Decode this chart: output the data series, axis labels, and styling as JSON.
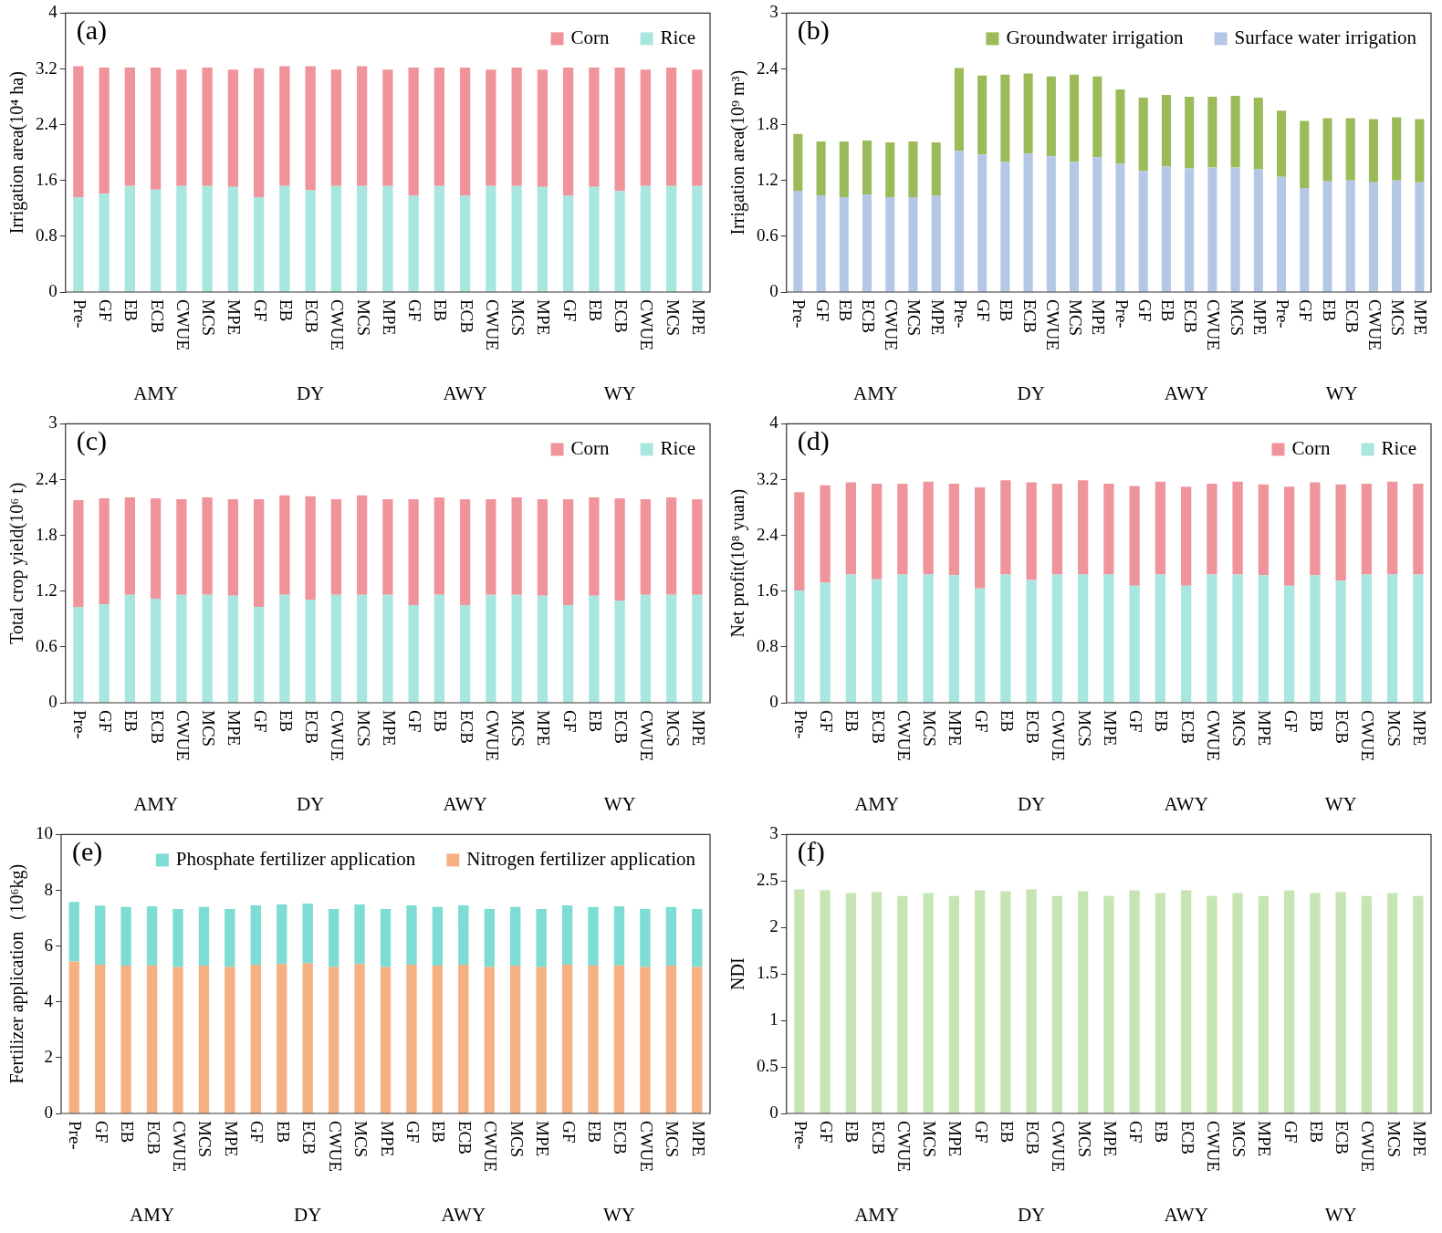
{
  "chart_data": [
    {
      "type": "bar",
      "title": "(a)",
      "ylabel": "Irrigation area(10⁴ ha)",
      "stacked": true,
      "legend": "top right",
      "ylim": [
        0,
        4
      ],
      "yticks": [
        0,
        0.8,
        1.6,
        2.4,
        3.2,
        4
      ],
      "annotations": [
        "AMY",
        "DY",
        "AWY",
        "WY"
      ],
      "categories": [
        "Pre-",
        "GF",
        "EB",
        "ECB",
        "CWUE",
        "MCS",
        "MPE",
        "GF",
        "EB",
        "ECB",
        "CWUE",
        "MCS",
        "MPE",
        "GF",
        "EB",
        "ECB",
        "CWUE",
        "MCS",
        "MPE",
        "GF",
        "EB",
        "ECB",
        "CWUE",
        "MCS",
        "MPE"
      ],
      "series": [
        {
          "name": "Rice",
          "color": "#a8e6e0",
          "values": [
            1.36,
            1.41,
            1.52,
            1.47,
            1.52,
            1.52,
            1.51,
            1.36,
            1.52,
            1.46,
            1.52,
            1.52,
            1.52,
            1.38,
            1.52,
            1.38,
            1.52,
            1.52,
            1.51,
            1.38,
            1.51,
            1.45,
            1.52,
            1.52,
            1.52
          ]
        },
        {
          "name": "Corn",
          "color": "#f0949c",
          "values": [
            1.88,
            1.81,
            1.7,
            1.75,
            1.67,
            1.7,
            1.68,
            1.85,
            1.72,
            1.78,
            1.67,
            1.72,
            1.67,
            1.84,
            1.7,
            1.84,
            1.67,
            1.7,
            1.68,
            1.84,
            1.71,
            1.77,
            1.67,
            1.7,
            1.67
          ]
        }
      ]
    },
    {
      "type": "bar",
      "title": "(b)",
      "ylabel": "Irrigation area(10⁹ m³)",
      "stacked": true,
      "legend": "top right",
      "ylim": [
        0,
        3
      ],
      "yticks": [
        0,
        0.6,
        1.2,
        1.8,
        2.4,
        3
      ],
      "annotations": [
        "AMY",
        "DY",
        "AWY",
        "WY"
      ],
      "categories": [
        "Pre-",
        "GF",
        "EB",
        "ECB",
        "CWUE",
        "MCS",
        "MPE",
        "Pre-",
        "GF",
        "EB",
        "ECB",
        "CWUE",
        "MCS",
        "MPE",
        "Pre-",
        "GF",
        "EB",
        "ECB",
        "CWUE",
        "MCS",
        "MPE",
        "Pre-",
        "GF",
        "EB",
        "ECB",
        "CWUE",
        "MCS",
        "MPE"
      ],
      "series": [
        {
          "name": "Surface water irrigation",
          "color": "#b4c7e7",
          "values": [
            1.09,
            1.04,
            1.02,
            1.05,
            1.02,
            1.02,
            1.04,
            1.52,
            1.48,
            1.4,
            1.49,
            1.46,
            1.4,
            1.45,
            1.38,
            1.3,
            1.35,
            1.33,
            1.34,
            1.34,
            1.32,
            1.24,
            1.12,
            1.19,
            1.2,
            1.18,
            1.2,
            1.18
          ]
        },
        {
          "name": "Groundwater irrigation",
          "color": "#9bbb59",
          "values": [
            0.61,
            0.58,
            0.6,
            0.58,
            0.59,
            0.6,
            0.57,
            0.89,
            0.85,
            0.94,
            0.86,
            0.86,
            0.94,
            0.87,
            0.8,
            0.79,
            0.77,
            0.77,
            0.76,
            0.77,
            0.77,
            0.71,
            0.72,
            0.68,
            0.67,
            0.68,
            0.68,
            0.68
          ]
        }
      ]
    },
    {
      "type": "bar",
      "title": "(c)",
      "ylabel": "Total crop yield(10⁶ t)",
      "stacked": true,
      "legend": "top right",
      "ylim": [
        0,
        3
      ],
      "yticks": [
        0,
        0.6,
        1.2,
        1.8,
        2.4,
        3
      ],
      "annotations": [
        "AMY",
        "DY",
        "AWY",
        "WY"
      ],
      "categories": [
        "Pre-",
        "GF",
        "EB",
        "ECB",
        "CWUE",
        "MCS",
        "MPE",
        "GF",
        "EB",
        "ECB",
        "CWUE",
        "MCS",
        "MPE",
        "GF",
        "EB",
        "ECB",
        "CWUE",
        "MCS",
        "MPE",
        "GF",
        "EB",
        "ECB",
        "CWUE",
        "MCS",
        "MPE"
      ],
      "series": [
        {
          "name": "Rice",
          "color": "#a8e6e0",
          "values": [
            1.03,
            1.06,
            1.16,
            1.12,
            1.16,
            1.16,
            1.15,
            1.03,
            1.16,
            1.11,
            1.16,
            1.16,
            1.16,
            1.05,
            1.16,
            1.05,
            1.16,
            1.16,
            1.15,
            1.05,
            1.15,
            1.1,
            1.16,
            1.16,
            1.16
          ]
        },
        {
          "name": "Corn",
          "color": "#f0949c",
          "values": [
            1.15,
            1.14,
            1.05,
            1.08,
            1.03,
            1.05,
            1.04,
            1.16,
            1.07,
            1.11,
            1.03,
            1.07,
            1.03,
            1.14,
            1.05,
            1.14,
            1.03,
            1.05,
            1.04,
            1.14,
            1.06,
            1.1,
            1.03,
            1.05,
            1.03
          ]
        }
      ]
    },
    {
      "type": "bar",
      "title": "(d)",
      "ylabel": "Net profit(10⁸ yuan)",
      "stacked": true,
      "legend": "top right",
      "ylim": [
        0,
        4
      ],
      "yticks": [
        0,
        0.8,
        1.6,
        2.4,
        3.2,
        4
      ],
      "annotations": [
        "AMY",
        "DY",
        "AWY",
        "WY"
      ],
      "categories": [
        "Pre-",
        "GF",
        "EB",
        "ECB",
        "CWUE",
        "MCS",
        "MPE",
        "GF",
        "EB",
        "ECB",
        "CWUE",
        "MCS",
        "MPE",
        "GF",
        "EB",
        "ECB",
        "CWUE",
        "MCS",
        "MPE",
        "GF",
        "EB",
        "ECB",
        "CWUE",
        "MCS",
        "MPE"
      ],
      "series": [
        {
          "name": "Rice",
          "color": "#a8e6e0",
          "values": [
            1.61,
            1.72,
            1.84,
            1.77,
            1.84,
            1.84,
            1.83,
            1.64,
            1.84,
            1.76,
            1.84,
            1.84,
            1.84,
            1.68,
            1.84,
            1.68,
            1.84,
            1.84,
            1.83,
            1.68,
            1.83,
            1.75,
            1.84,
            1.84,
            1.84
          ]
        },
        {
          "name": "Corn",
          "color": "#f0949c",
          "values": [
            1.41,
            1.4,
            1.32,
            1.37,
            1.3,
            1.33,
            1.31,
            1.45,
            1.35,
            1.4,
            1.3,
            1.35,
            1.3,
            1.43,
            1.33,
            1.42,
            1.3,
            1.33,
            1.3,
            1.42,
            1.33,
            1.38,
            1.3,
            1.33,
            1.3
          ]
        }
      ]
    },
    {
      "type": "bar",
      "title": "(e)",
      "ylabel": "Fertilizer application（10⁶kg)",
      "stacked": true,
      "legend": "top right",
      "ylim": [
        0,
        10
      ],
      "yticks": [
        0,
        2,
        4,
        6,
        8,
        10
      ],
      "annotations": [
        "AMY",
        "DY",
        "AWY",
        "WY"
      ],
      "categories": [
        "Pre-",
        "GF",
        "EB",
        "ECB",
        "CWUE",
        "MCS",
        "MPE",
        "GF",
        "EB",
        "ECB",
        "CWUE",
        "MCS",
        "MPE",
        "GF",
        "EB",
        "ECB",
        "CWUE",
        "MCS",
        "MPE",
        "GF",
        "EB",
        "ECB",
        "CWUE",
        "MCS",
        "MPE"
      ],
      "series": [
        {
          "name": "Nitrogen fertilizer application",
          "color": "#f5b183",
          "values": [
            5.45,
            5.33,
            5.3,
            5.31,
            5.25,
            5.3,
            5.25,
            5.33,
            5.36,
            5.38,
            5.25,
            5.36,
            5.25,
            5.33,
            5.3,
            5.33,
            5.25,
            5.3,
            5.25,
            5.33,
            5.3,
            5.31,
            5.25,
            5.3,
            5.25
          ]
        },
        {
          "name": "Phosphate fertilizer application",
          "color": "#7ddcd3",
          "values": [
            2.13,
            2.12,
            2.1,
            2.12,
            2.08,
            2.1,
            2.08,
            2.13,
            2.13,
            2.15,
            2.08,
            2.13,
            2.08,
            2.13,
            2.1,
            2.13,
            2.08,
            2.1,
            2.08,
            2.13,
            2.1,
            2.12,
            2.08,
            2.1,
            2.08
          ]
        }
      ]
    },
    {
      "type": "bar",
      "title": "(f)",
      "ylabel": "NDI",
      "ylim": [
        0,
        3
      ],
      "yticks": [
        0,
        0.5,
        1,
        1.5,
        2,
        2.5,
        3
      ],
      "annotations": [
        "AMY",
        "DY",
        "AWY",
        "WY"
      ],
      "color": "#c6e5b3",
      "categories": [
        "Pre-",
        "GF",
        "EB",
        "ECB",
        "CWUE",
        "MCS",
        "MPE",
        "GF",
        "EB",
        "ECB",
        "CWUE",
        "MCS",
        "MPE",
        "GF",
        "EB",
        "ECB",
        "CWUE",
        "MCS",
        "MPE",
        "GF",
        "EB",
        "ECB",
        "CWUE",
        "MCS",
        "MPE"
      ],
      "values": [
        2.41,
        2.4,
        2.37,
        2.38,
        2.34,
        2.37,
        2.34,
        2.4,
        2.39,
        2.41,
        2.34,
        2.39,
        2.34,
        2.4,
        2.37,
        2.4,
        2.34,
        2.37,
        2.34,
        2.4,
        2.37,
        2.38,
        2.34,
        2.37,
        2.34
      ]
    }
  ]
}
